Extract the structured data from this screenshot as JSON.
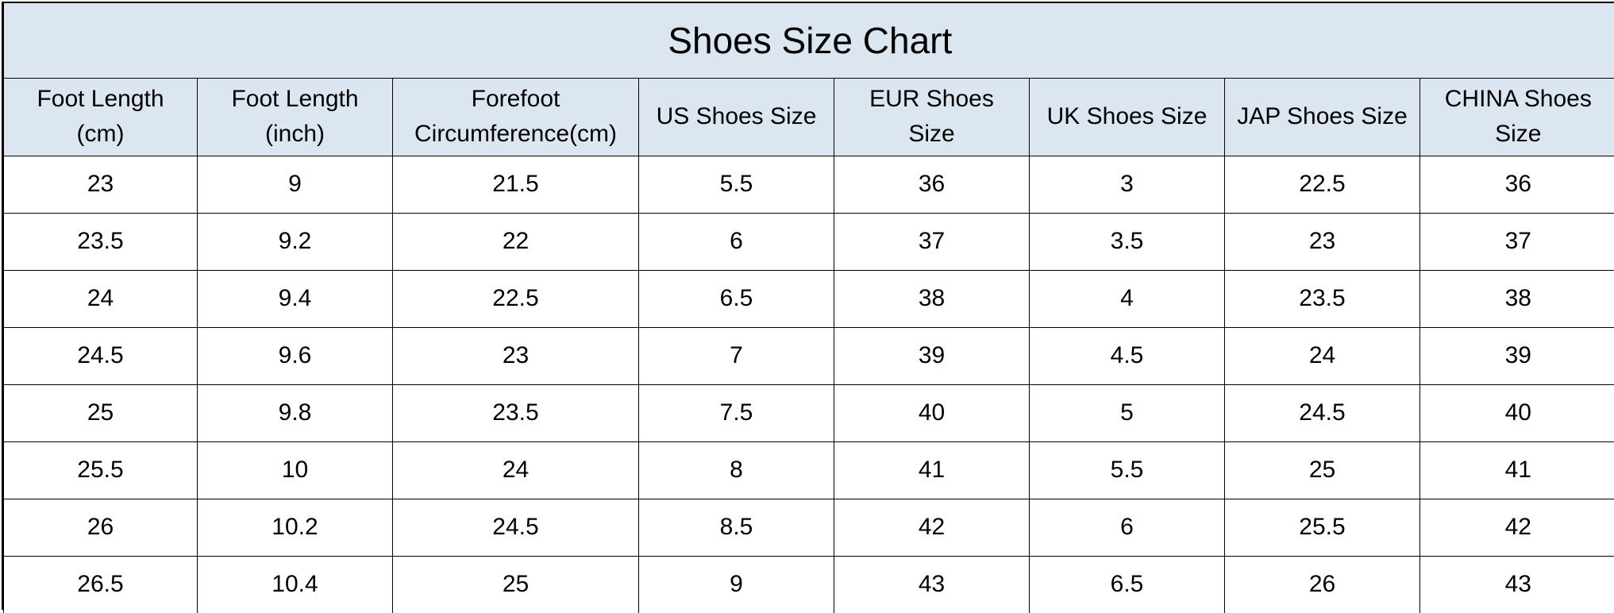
{
  "title": "Shoes Size Chart",
  "columns": [
    [
      "Foot Length",
      "(cm)"
    ],
    [
      "Foot Length",
      "(inch)"
    ],
    [
      "Forefoot",
      "Circumference(cm)"
    ],
    [
      "US Shoes Size"
    ],
    [
      "EUR Shoes",
      "Size"
    ],
    [
      "UK Shoes Size"
    ],
    [
      "JAP Shoes Size"
    ],
    [
      "CHINA Shoes",
      "Size"
    ]
  ],
  "rows": [
    [
      "23",
      "9",
      "21.5",
      "5.5",
      "36",
      "3",
      "22.5",
      "36"
    ],
    [
      "23.5",
      "9.2",
      "22",
      "6",
      "37",
      "3.5",
      "23",
      "37"
    ],
    [
      "24",
      "9.4",
      "22.5",
      "6.5",
      "38",
      "4",
      "23.5",
      "38"
    ],
    [
      "24.5",
      "9.6",
      "23",
      "7",
      "39",
      "4.5",
      "24",
      "39"
    ],
    [
      "25",
      "9.8",
      "23.5",
      "7.5",
      "40",
      "5",
      "24.5",
      "40"
    ],
    [
      "25.5",
      "10",
      "24",
      "8",
      "41",
      "5.5",
      "25",
      "41"
    ],
    [
      "26",
      "10.2",
      "24.5",
      "8.5",
      "42",
      "6",
      "25.5",
      "42"
    ],
    [
      "26.5",
      "10.4",
      "25",
      "9",
      "43",
      "6.5",
      "26",
      "43"
    ]
  ]
}
